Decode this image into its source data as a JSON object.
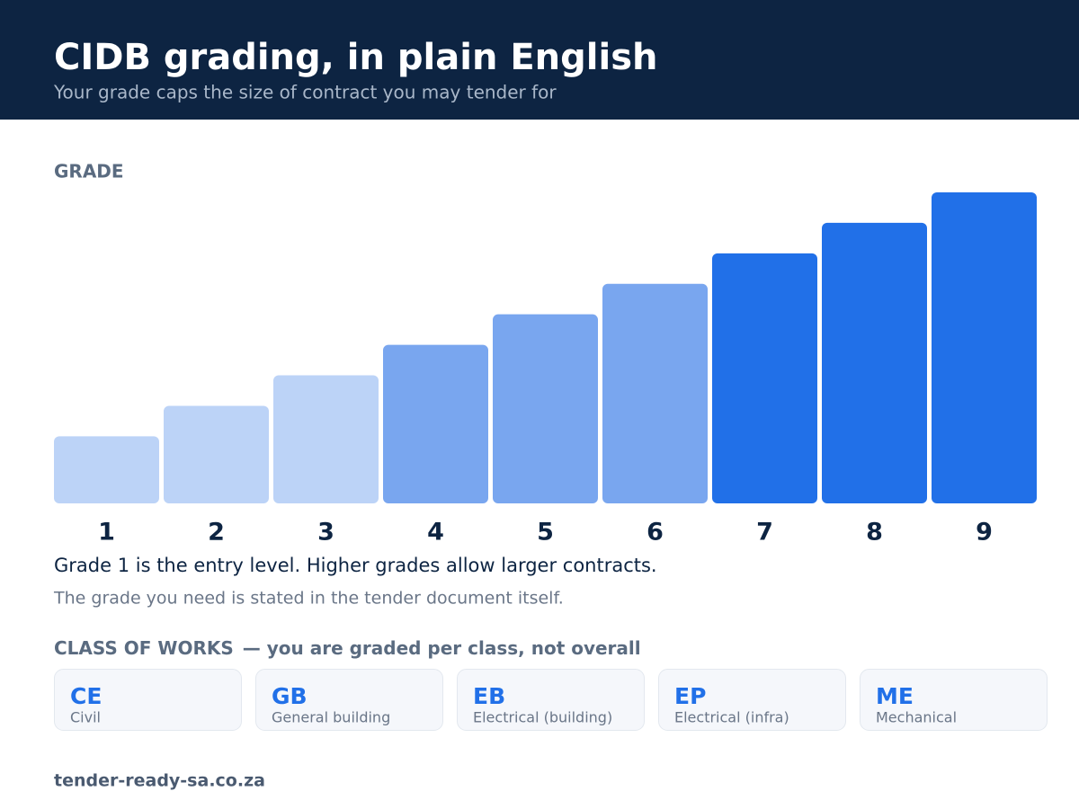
{
  "header": {
    "title": "CIDB grading, in plain English",
    "subtitle": "Your grade caps the size of contract you may tender for"
  },
  "chart_data": {
    "type": "bar",
    "axis_label": "GRADE",
    "categories": [
      "1",
      "2",
      "3",
      "4",
      "5",
      "6",
      "7",
      "8",
      "9"
    ],
    "values": [
      1,
      2,
      3,
      4,
      5,
      6,
      7,
      8,
      9
    ],
    "colors": [
      "#bcd3f7",
      "#bcd3f7",
      "#bcd3f7",
      "#79a6ef",
      "#79a6ef",
      "#79a6ef",
      "#2170e8",
      "#2170e8",
      "#2170e8"
    ],
    "ylim": [
      -1.2,
      9
    ]
  },
  "notes": [
    "Grade 1 is the entry level. Higher grades allow larger contracts.",
    "The grade you need is stated in the tender document itself."
  ],
  "classes": {
    "title": "CLASS OF WORKS",
    "subtitle": "— you are graded per class, not overall",
    "items": [
      {
        "code": "CE",
        "name": "Civil"
      },
      {
        "code": "GB",
        "name": "General building"
      },
      {
        "code": "EB",
        "name": "Electrical (building)"
      },
      {
        "code": "EP",
        "name": "Electrical (infra)"
      },
      {
        "code": "ME",
        "name": "Mechanical"
      }
    ]
  },
  "footer": "tender-ready-sa.co.za"
}
